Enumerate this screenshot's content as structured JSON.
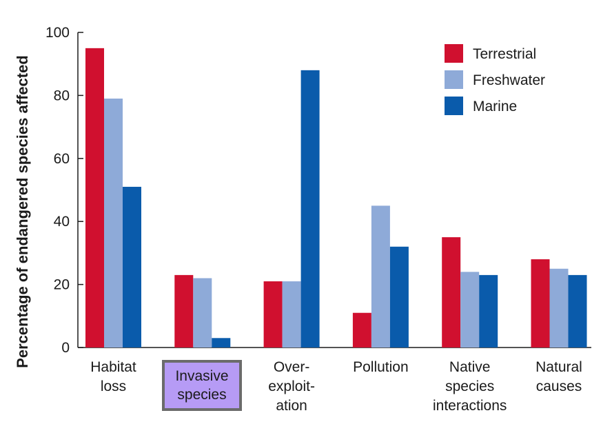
{
  "chart_data": {
    "type": "bar",
    "title": "",
    "ylabel": "Percentage of endangered species affected",
    "xlabel": "",
    "ylim": [
      0,
      100
    ],
    "yticks": [
      0,
      20,
      40,
      60,
      80,
      100
    ],
    "grid": false,
    "legend_position": "top-right",
    "categories": [
      [
        "Habitat",
        "loss"
      ],
      [
        "Invasive",
        "species"
      ],
      [
        "Over-",
        "exploit-",
        "ation"
      ],
      [
        "Pollution"
      ],
      [
        "Native",
        "species",
        "interactions"
      ],
      [
        "Natural",
        "causes"
      ]
    ],
    "series": [
      {
        "name": "Terrestrial",
        "color": "#d0102f",
        "values": [
          95,
          23,
          21,
          11,
          35,
          28
        ]
      },
      {
        "name": "Freshwater",
        "color": "#8eaad8",
        "values": [
          79,
          22,
          21,
          45,
          24,
          25
        ]
      },
      {
        "name": "Marine",
        "color": "#0a5bab",
        "values": [
          51,
          3,
          88,
          32,
          23,
          23
        ]
      }
    ]
  },
  "highlight": {
    "lines": [
      "Invasive",
      "species"
    ],
    "fill": "#b69bf5",
    "border": "#6b6b6b"
  }
}
